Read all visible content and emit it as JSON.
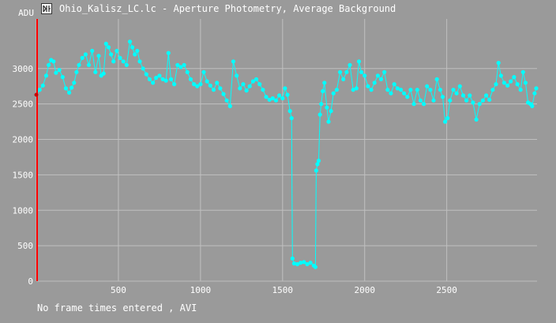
{
  "window": {
    "title": "Ohio_Kalisz_LC.lc - Aperture Photometry, Average Background"
  },
  "status": {
    "text": "No frame times entered , AVI"
  },
  "colors": {
    "background": "#9a9a9a",
    "data": "#00ffff",
    "cursor": "#ff0000",
    "grid": "#c0c0c0"
  },
  "icons": {
    "app": "light-curve-app-icon"
  },
  "chart_data": {
    "type": "scatter",
    "title": "",
    "xlabel": "",
    "ylabel": "ADU",
    "xlim": [
      0,
      3050
    ],
    "ylim": [
      0,
      3700
    ],
    "xticks": [
      500,
      1000,
      1500,
      2000,
      2500
    ],
    "yticks": [
      0,
      500,
      1000,
      1500,
      2000,
      2500,
      3000
    ],
    "grid": true,
    "cursor_x": 0,
    "cursor_y": 2630,
    "series": [
      {
        "points": [
          [
            0,
            2630
          ],
          [
            20,
            2700
          ],
          [
            40,
            2760
          ],
          [
            60,
            2900
          ],
          [
            75,
            3050
          ],
          [
            90,
            3120
          ],
          [
            105,
            3100
          ],
          [
            120,
            2940
          ],
          [
            140,
            2980
          ],
          [
            160,
            2880
          ],
          [
            180,
            2720
          ],
          [
            200,
            2660
          ],
          [
            215,
            2730
          ],
          [
            230,
            2800
          ],
          [
            245,
            2950
          ],
          [
            260,
            3050
          ],
          [
            280,
            3150
          ],
          [
            300,
            3200
          ],
          [
            320,
            3050
          ],
          [
            340,
            3250
          ],
          [
            360,
            2950
          ],
          [
            380,
            3180
          ],
          [
            395,
            2900
          ],
          [
            410,
            2930
          ],
          [
            425,
            3350
          ],
          [
            440,
            3300
          ],
          [
            455,
            3200
          ],
          [
            470,
            3100
          ],
          [
            490,
            3250
          ],
          [
            510,
            3150
          ],
          [
            530,
            3100
          ],
          [
            550,
            3050
          ],
          [
            570,
            3380
          ],
          [
            585,
            3300
          ],
          [
            600,
            3200
          ],
          [
            615,
            3250
          ],
          [
            630,
            3100
          ],
          [
            650,
            3000
          ],
          [
            670,
            2920
          ],
          [
            690,
            2850
          ],
          [
            710,
            2800
          ],
          [
            730,
            2870
          ],
          [
            750,
            2900
          ],
          [
            770,
            2850
          ],
          [
            790,
            2830
          ],
          [
            805,
            3220
          ],
          [
            820,
            2850
          ],
          [
            840,
            2780
          ],
          [
            860,
            3050
          ],
          [
            880,
            3020
          ],
          [
            900,
            3050
          ],
          [
            920,
            2950
          ],
          [
            940,
            2850
          ],
          [
            960,
            2780
          ],
          [
            980,
            2750
          ],
          [
            1000,
            2780
          ],
          [
            1020,
            2950
          ],
          [
            1040,
            2820
          ],
          [
            1060,
            2760
          ],
          [
            1080,
            2700
          ],
          [
            1100,
            2800
          ],
          [
            1120,
            2720
          ],
          [
            1140,
            2640
          ],
          [
            1160,
            2550
          ],
          [
            1180,
            2470
          ],
          [
            1200,
            3100
          ],
          [
            1220,
            2900
          ],
          [
            1240,
            2720
          ],
          [
            1260,
            2780
          ],
          [
            1280,
            2690
          ],
          [
            1300,
            2750
          ],
          [
            1320,
            2820
          ],
          [
            1340,
            2850
          ],
          [
            1360,
            2780
          ],
          [
            1380,
            2700
          ],
          [
            1400,
            2600
          ],
          [
            1420,
            2560
          ],
          [
            1440,
            2580
          ],
          [
            1460,
            2550
          ],
          [
            1480,
            2620
          ],
          [
            1500,
            2580
          ],
          [
            1515,
            2720
          ],
          [
            1530,
            2630
          ],
          [
            1545,
            2400
          ],
          [
            1555,
            2300
          ],
          [
            1560,
            320
          ],
          [
            1570,
            250
          ],
          [
            1590,
            240
          ],
          [
            1610,
            260
          ],
          [
            1630,
            270
          ],
          [
            1650,
            240
          ],
          [
            1670,
            260
          ],
          [
            1690,
            220
          ],
          [
            1700,
            200
          ],
          [
            1705,
            1560
          ],
          [
            1712,
            1650
          ],
          [
            1720,
            1700
          ],
          [
            1728,
            2350
          ],
          [
            1735,
            2500
          ],
          [
            1745,
            2680
          ],
          [
            1755,
            2800
          ],
          [
            1770,
            2450
          ],
          [
            1780,
            2250
          ],
          [
            1795,
            2400
          ],
          [
            1810,
            2650
          ],
          [
            1830,
            2700
          ],
          [
            1850,
            2950
          ],
          [
            1870,
            2850
          ],
          [
            1890,
            2950
          ],
          [
            1910,
            3050
          ],
          [
            1930,
            2700
          ],
          [
            1950,
            2720
          ],
          [
            1965,
            3100
          ],
          [
            1980,
            2950
          ],
          [
            2000,
            2900
          ],
          [
            2020,
            2750
          ],
          [
            2040,
            2700
          ],
          [
            2060,
            2800
          ],
          [
            2080,
            2900
          ],
          [
            2100,
            2850
          ],
          [
            2120,
            2950
          ],
          [
            2140,
            2700
          ],
          [
            2160,
            2650
          ],
          [
            2180,
            2780
          ],
          [
            2200,
            2720
          ],
          [
            2220,
            2700
          ],
          [
            2240,
            2650
          ],
          [
            2260,
            2600
          ],
          [
            2280,
            2700
          ],
          [
            2300,
            2500
          ],
          [
            2320,
            2700
          ],
          [
            2340,
            2550
          ],
          [
            2360,
            2500
          ],
          [
            2380,
            2750
          ],
          [
            2400,
            2700
          ],
          [
            2420,
            2550
          ],
          [
            2440,
            2850
          ],
          [
            2460,
            2700
          ],
          [
            2475,
            2600
          ],
          [
            2490,
            2250
          ],
          [
            2505,
            2300
          ],
          [
            2520,
            2550
          ],
          [
            2540,
            2700
          ],
          [
            2560,
            2650
          ],
          [
            2580,
            2750
          ],
          [
            2600,
            2620
          ],
          [
            2620,
            2550
          ],
          [
            2640,
            2620
          ],
          [
            2660,
            2520
          ],
          [
            2680,
            2280
          ],
          [
            2700,
            2500
          ],
          [
            2720,
            2550
          ],
          [
            2740,
            2620
          ],
          [
            2760,
            2560
          ],
          [
            2780,
            2700
          ],
          [
            2800,
            2780
          ],
          [
            2815,
            3080
          ],
          [
            2830,
            2900
          ],
          [
            2850,
            2800
          ],
          [
            2870,
            2760
          ],
          [
            2890,
            2820
          ],
          [
            2910,
            2880
          ],
          [
            2930,
            2780
          ],
          [
            2950,
            2700
          ],
          [
            2965,
            2950
          ],
          [
            2980,
            2800
          ],
          [
            2995,
            2520
          ],
          [
            3010,
            2500
          ],
          [
            3020,
            2470
          ],
          [
            3035,
            2650
          ],
          [
            3045,
            2720
          ]
        ]
      }
    ]
  }
}
